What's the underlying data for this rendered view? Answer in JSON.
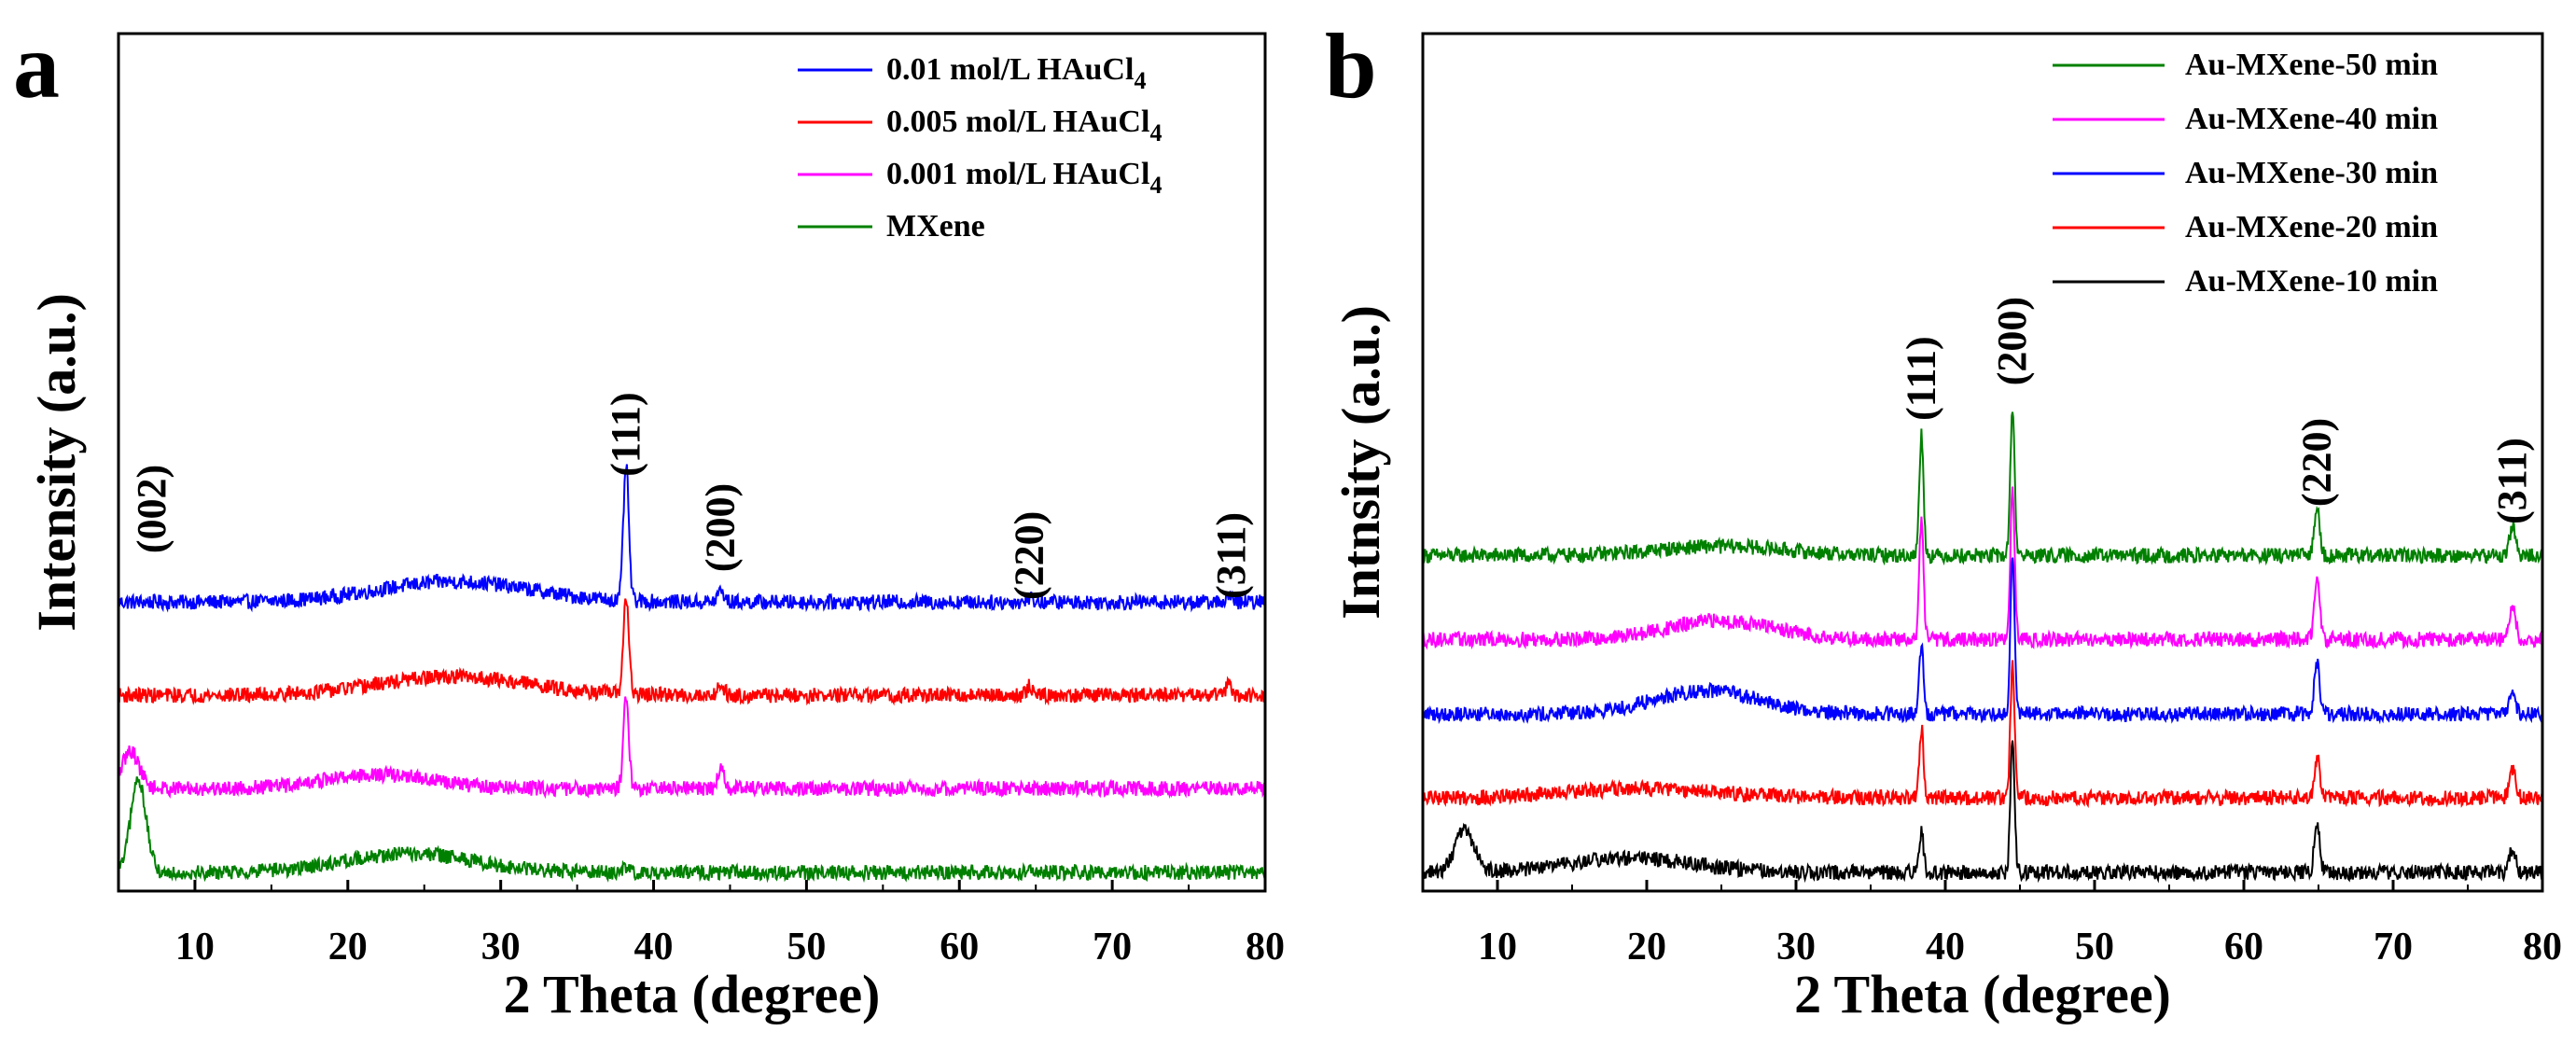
{
  "chart_data": [
    {
      "type": "line",
      "panel_label": "a",
      "title": "",
      "xlabel": "2 Theta (degree)",
      "ylabel": "Intensity (a.u.)",
      "xlim": [
        5,
        80
      ],
      "xticks": [
        10,
        20,
        30,
        40,
        50,
        60,
        70,
        80
      ],
      "xtick_labels": [
        "10",
        "20",
        "30",
        "40",
        "50",
        "60",
        "70",
        "80"
      ],
      "yticks": "none",
      "legend_position": "top-right",
      "series": [
        {
          "name": "0.01 mol/L HAuCl4",
          "legend_main": "0.01 mol/L HAuCl",
          "legend_sub": "4",
          "color": "#0000ff",
          "offset": 3.1,
          "amorphous_hump": {
            "center": 27,
            "width": 7,
            "height": 0.22
          },
          "peaks": [
            {
              "x": 38.2,
              "height": 1.45,
              "width": 0.25
            },
            {
              "x": 44.4,
              "height": 0.12,
              "width": 0.3
            },
            {
              "x": 64.6,
              "height": 0.05,
              "width": 0.3
            },
            {
              "x": 77.6,
              "height": 0.05,
              "width": 0.3
            }
          ]
        },
        {
          "name": "0.005 mol/L HAuCl4",
          "legend_main": "0.005 mol/L HAuCl",
          "legend_sub": "4",
          "color": "#ff0000",
          "offset": 2.1,
          "amorphous_hump": {
            "center": 27,
            "width": 7,
            "height": 0.2
          },
          "peaks": [
            {
              "x": 38.2,
              "height": 1.05,
              "width": 0.25
            },
            {
              "x": 44.4,
              "height": 0.12,
              "width": 0.3
            },
            {
              "x": 64.6,
              "height": 0.1,
              "width": 0.3
            },
            {
              "x": 77.6,
              "height": 0.1,
              "width": 0.3
            }
          ]
        },
        {
          "name": "0.001 mol/L HAuCl4",
          "legend_main": "0.001 mol/L HAuCl",
          "legend_sub": "4",
          "color": "#ff00ff",
          "offset": 1.1,
          "amorphous_hump": {
            "center": 22,
            "width": 5,
            "height": 0.15
          },
          "peaks": [
            {
              "x": 5.8,
              "height": 0.4,
              "width": 0.8
            },
            {
              "x": 38.2,
              "height": 1.0,
              "width": 0.25
            },
            {
              "x": 44.4,
              "height": 0.2,
              "width": 0.3
            }
          ]
        },
        {
          "name": "MXene",
          "legend_main": "MXene",
          "legend_sub": "",
          "color": "#008000",
          "offset": 0.2,
          "amorphous_hump": {
            "center": 24,
            "width": 6,
            "height": 0.2
          },
          "peaks": [
            {
              "x": 6.3,
              "height": 1.0,
              "width": 0.7
            },
            {
              "x": 38.2,
              "height": 0.05,
              "width": 0.3
            }
          ]
        }
      ],
      "annotations": [
        {
          "text": "(002)",
          "x": 7.2,
          "y": 4.1
        },
        {
          "text": "(111)",
          "x": 38.2,
          "y": 4.9
        },
        {
          "text": "(200)",
          "x": 44.4,
          "y": 3.9
        },
        {
          "text": "(220)",
          "x": 64.6,
          "y": 3.6
        },
        {
          "text": "(311)",
          "x": 77.8,
          "y": 3.6
        }
      ],
      "ylim": [
        0,
        9.2
      ]
    },
    {
      "type": "line",
      "panel_label": "b",
      "title": "",
      "xlabel": "2 Theta (degree)",
      "ylabel": "Intnsity (a.u.)",
      "xlim": [
        5,
        80
      ],
      "xticks": [
        10,
        20,
        30,
        40,
        50,
        60,
        70,
        80
      ],
      "xtick_labels": [
        "10",
        "20",
        "30",
        "40",
        "50",
        "60",
        "70",
        "80"
      ],
      "yticks": "none",
      "legend_position": "top-right",
      "series": [
        {
          "name": "Au-MXene-50 min",
          "color": "#008000",
          "offset": 3.6,
          "amorphous_hump": {
            "center": 25,
            "width": 6,
            "height": 0.1
          },
          "peaks": [
            {
              "x": 38.4,
              "height": 1.3,
              "width": 0.2
            },
            {
              "x": 44.5,
              "height": 1.6,
              "width": 0.2
            },
            {
              "x": 64.9,
              "height": 0.55,
              "width": 0.25
            },
            {
              "x": 78.0,
              "height": 0.3,
              "width": 0.3
            }
          ]
        },
        {
          "name": "Au-MXene-40 min",
          "color": "#ff00ff",
          "offset": 2.7,
          "amorphous_hump": {
            "center": 25,
            "width": 5,
            "height": 0.2
          },
          "peaks": [
            {
              "x": 38.4,
              "height": 1.3,
              "width": 0.2
            },
            {
              "x": 44.5,
              "height": 1.6,
              "width": 0.2
            },
            {
              "x": 64.9,
              "height": 0.65,
              "width": 0.25
            },
            {
              "x": 78.0,
              "height": 0.35,
              "width": 0.3
            }
          ]
        },
        {
          "name": "Au-MXene-30 min",
          "color": "#0000ff",
          "offset": 1.9,
          "amorphous_hump": {
            "center": 24,
            "width": 5,
            "height": 0.25
          },
          "peaks": [
            {
              "x": 38.4,
              "height": 0.75,
              "width": 0.2
            },
            {
              "x": 44.5,
              "height": 1.7,
              "width": 0.2
            },
            {
              "x": 64.9,
              "height": 0.55,
              "width": 0.25
            },
            {
              "x": 78.0,
              "height": 0.2,
              "width": 0.3
            }
          ]
        },
        {
          "name": "Au-MXene-20 min",
          "color": "#ff0000",
          "offset": 1.0,
          "amorphous_hump": {
            "center": 20,
            "width": 7,
            "height": 0.1
          },
          "peaks": [
            {
              "x": 38.4,
              "height": 0.75,
              "width": 0.2
            },
            {
              "x": 44.5,
              "height": 1.4,
              "width": 0.2
            },
            {
              "x": 64.9,
              "height": 0.45,
              "width": 0.25
            },
            {
              "x": 78.0,
              "height": 0.3,
              "width": 0.3
            }
          ]
        },
        {
          "name": "Au-MXene-10 min",
          "color": "#000000",
          "offset": 0.2,
          "amorphous_hump": {
            "center": 19,
            "width": 6,
            "height": 0.15
          },
          "peaks": [
            {
              "x": 7.8,
              "height": 0.45,
              "width": 0.9
            },
            {
              "x": 38.4,
              "height": 0.45,
              "width": 0.2
            },
            {
              "x": 44.5,
              "height": 1.4,
              "width": 0.2
            },
            {
              "x": 64.9,
              "height": 0.55,
              "width": 0.25
            },
            {
              "x": 78.0,
              "height": 0.25,
              "width": 0.3
            }
          ]
        }
      ],
      "annotations": [
        {
          "text": "(111)",
          "x": 38.4,
          "y": 5.5
        },
        {
          "text": "(200)",
          "x": 44.5,
          "y": 5.9
        },
        {
          "text": "(220)",
          "x": 64.9,
          "y": 4.6
        },
        {
          "text": "(311)",
          "x": 78.0,
          "y": 4.4
        }
      ],
      "ylim": [
        0,
        9.2
      ]
    }
  ]
}
